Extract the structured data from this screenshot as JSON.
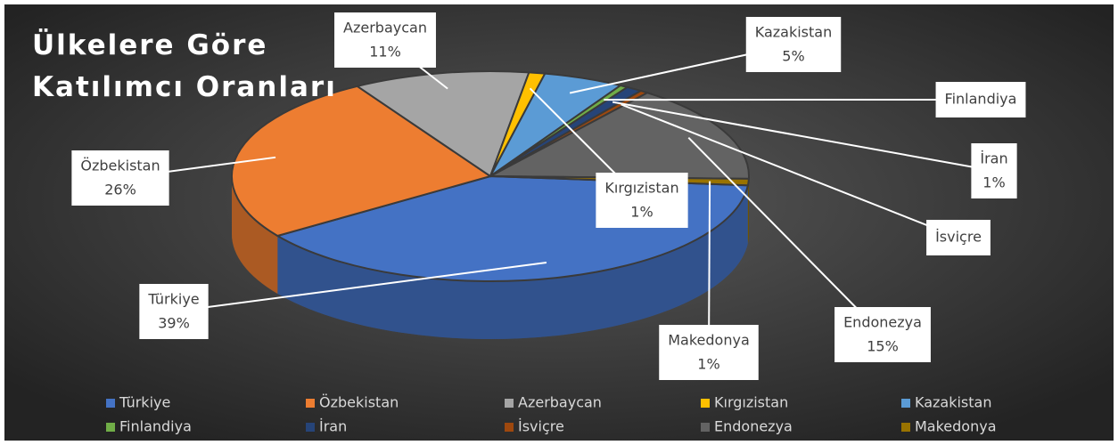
{
  "chart_data": {
    "type": "pie3d",
    "title": "Ülkelere Göre Katılımcı Oranları",
    "categories": [
      "Türkiye",
      "Özbekistan",
      "Azerbaycan",
      "Kırgızistan",
      "Kazakistan",
      "Finlandiya",
      "İran",
      "İsviçre",
      "Endonezya",
      "Makedonya"
    ],
    "values": [
      39,
      26,
      11,
      1,
      5,
      0.5,
      1,
      0.5,
      15,
      1
    ],
    "value_labels": [
      "39%",
      "26%",
      "11%",
      "1%",
      "5%",
      null,
      "1%",
      null,
      "15%",
      "1%"
    ],
    "colors": [
      "#4472c4",
      "#ed7d31",
      "#a5a5a5",
      "#ffc000",
      "#5b9bd5",
      "#70ad47",
      "#264478",
      "#9e480e",
      "#636363",
      "#997300"
    ],
    "legend": "bottom"
  }
}
